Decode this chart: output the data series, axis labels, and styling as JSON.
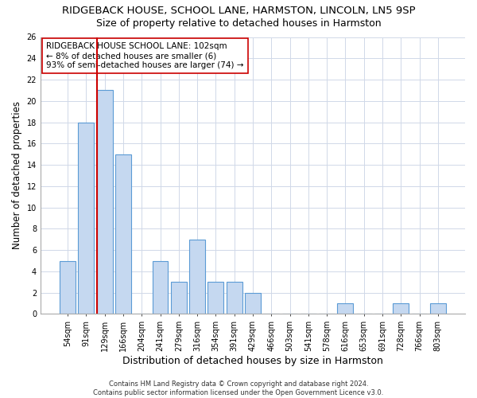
{
  "title": "RIDGEBACK HOUSE, SCHOOL LANE, HARMSTON, LINCOLN, LN5 9SP",
  "subtitle": "Size of property relative to detached houses in Harmston",
  "xlabel": "Distribution of detached houses by size in Harmston",
  "ylabel": "Number of detached properties",
  "categories": [
    "54sqm",
    "91sqm",
    "129sqm",
    "166sqm",
    "204sqm",
    "241sqm",
    "279sqm",
    "316sqm",
    "354sqm",
    "391sqm",
    "429sqm",
    "466sqm",
    "503sqm",
    "541sqm",
    "578sqm",
    "616sqm",
    "653sqm",
    "691sqm",
    "728sqm",
    "766sqm",
    "803sqm"
  ],
  "values": [
    5,
    18,
    21,
    15,
    0,
    5,
    3,
    7,
    3,
    3,
    2,
    0,
    0,
    0,
    0,
    1,
    0,
    0,
    1,
    0,
    1
  ],
  "bar_color": "#c5d8f0",
  "bar_edgecolor": "#5b9bd5",
  "vline_color": "#cc0000",
  "vline_xindex": 1.575,
  "annotation_text": "RIDGEBACK HOUSE SCHOOL LANE: 102sqm\n← 8% of detached houses are smaller (6)\n93% of semi-detached houses are larger (74) →",
  "annotation_box_color": "#ffffff",
  "annotation_box_edgecolor": "#cc0000",
  "ylim": [
    0,
    26
  ],
  "yticks": [
    0,
    2,
    4,
    6,
    8,
    10,
    12,
    14,
    16,
    18,
    20,
    22,
    24,
    26
  ],
  "grid_color": "#d0d8e8",
  "footer": "Contains HM Land Registry data © Crown copyright and database right 2024.\nContains public sector information licensed under the Open Government Licence v3.0.",
  "title_fontsize": 9.5,
  "subtitle_fontsize": 9,
  "xlabel_fontsize": 9,
  "ylabel_fontsize": 8.5,
  "tick_fontsize": 7,
  "annotation_fontsize": 7.5,
  "footer_fontsize": 6
}
